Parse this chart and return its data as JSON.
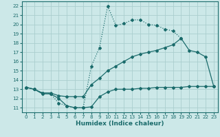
{
  "line_max": {
    "x": [
      0,
      1,
      2,
      3,
      4,
      5,
      6,
      7,
      8,
      9,
      10,
      11,
      12,
      13,
      14,
      15,
      16,
      17,
      18,
      19,
      20,
      21,
      22,
      23
    ],
    "y": [
      13.2,
      13.0,
      12.6,
      12.5,
      11.5,
      11.2,
      11.0,
      11.0,
      15.5,
      17.5,
      22.0,
      19.9,
      20.1,
      20.5,
      20.5,
      20.0,
      19.9,
      19.5,
      19.3,
      18.5,
      null,
      null,
      null,
      null
    ],
    "markers": [
      0,
      1,
      2,
      3,
      4,
      5,
      6,
      7,
      8,
      9,
      10,
      11,
      12,
      13,
      14,
      15,
      16,
      17,
      18,
      19
    ]
  },
  "line_mean": {
    "x": [
      0,
      1,
      2,
      3,
      4,
      5,
      6,
      7,
      8,
      9,
      10,
      11,
      12,
      13,
      14,
      15,
      16,
      17,
      18,
      19,
      20,
      21,
      22,
      23
    ],
    "y": [
      13.2,
      13.0,
      12.6,
      12.6,
      12.3,
      12.2,
      12.2,
      12.2,
      13.5,
      14.2,
      15.0,
      15.5,
      16.0,
      16.5,
      16.8,
      17.0,
      17.2,
      17.5,
      17.8,
      18.5,
      17.2,
      17.0,
      16.5,
      13.3
    ]
  },
  "line_min": {
    "x": [
      0,
      1,
      2,
      3,
      4,
      5,
      6,
      7,
      8,
      9,
      10,
      11,
      12,
      13,
      14,
      15,
      16,
      17,
      18,
      19,
      20,
      21,
      22,
      23
    ],
    "y": [
      13.2,
      13.0,
      12.5,
      12.5,
      12.0,
      11.2,
      11.0,
      11.0,
      11.1,
      12.2,
      12.7,
      13.0,
      13.0,
      13.0,
      13.1,
      13.1,
      13.2,
      13.2,
      13.2,
      13.2,
      13.3,
      13.3,
      13.3,
      13.3
    ]
  },
  "color": "#1a6b6b",
  "bg_color": "#cce8e8",
  "grid_color": "#aacece",
  "xlabel": "Humidex (Indice chaleur)",
  "xlim": [
    -0.5,
    23.5
  ],
  "ylim": [
    10.5,
    22.5
  ],
  "xticks": [
    0,
    1,
    2,
    3,
    4,
    5,
    6,
    7,
    8,
    9,
    10,
    11,
    12,
    13,
    14,
    15,
    16,
    17,
    18,
    19,
    20,
    21,
    22,
    23
  ],
  "yticks": [
    11,
    12,
    13,
    14,
    15,
    16,
    17,
    18,
    19,
    20,
    21,
    22
  ],
  "marker": "D",
  "markersize": 2.0,
  "linewidth": 0.9,
  "xlabel_fontsize": 6.5,
  "tick_fontsize": 5.2
}
